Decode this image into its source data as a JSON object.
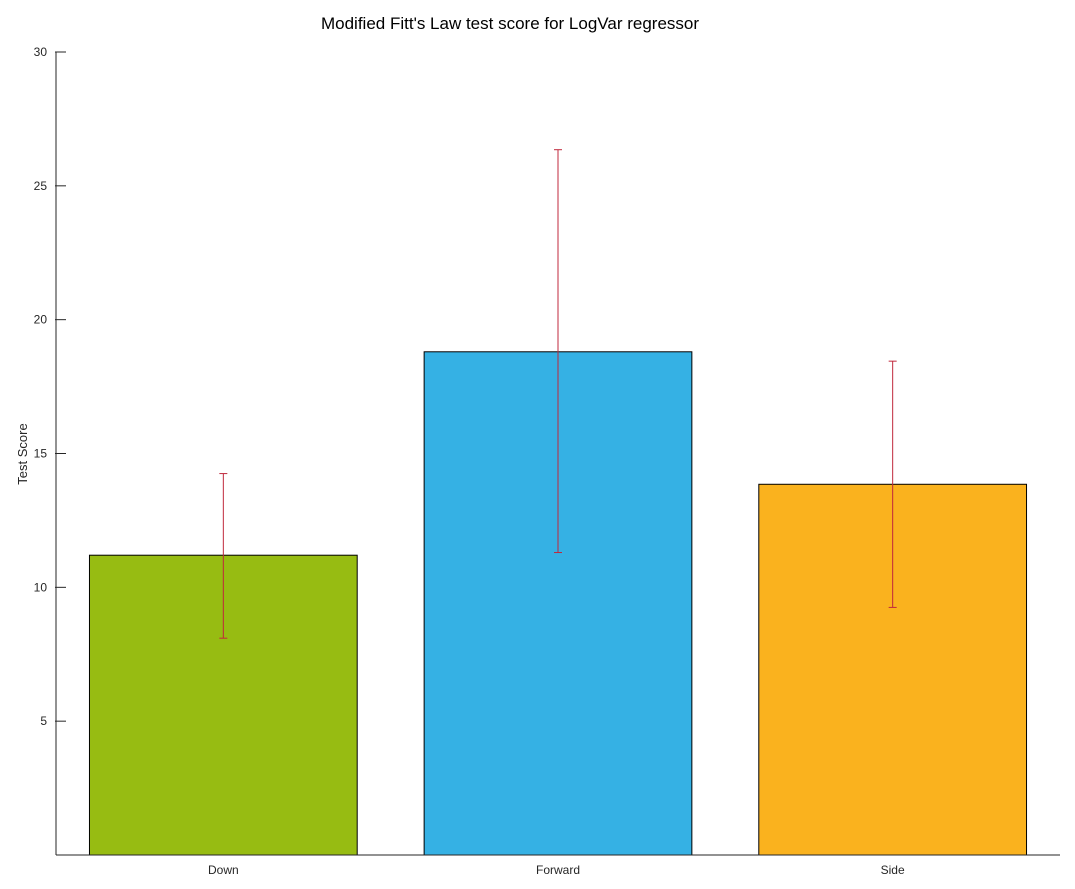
{
  "chart_data": {
    "type": "bar",
    "title": "Modified Fitt's Law  test score for LogVar regressor",
    "xlabel": "",
    "ylabel": "Test Score",
    "categories": [
      "Down",
      "Forward",
      "Side"
    ],
    "values": [
      11.2,
      18.8,
      13.85
    ],
    "error": {
      "lower": [
        8.1,
        11.3,
        9.25
      ],
      "upper": [
        14.25,
        26.35,
        18.45
      ]
    },
    "bar_colors": [
      "#97bc12",
      "#35b1e4",
      "#fab21e"
    ],
    "errorbar_color": "#c0283c",
    "ylim": [
      0,
      30
    ],
    "yticks": [
      5,
      10,
      15,
      20,
      25,
      30
    ],
    "grid": false,
    "legend": "none"
  }
}
